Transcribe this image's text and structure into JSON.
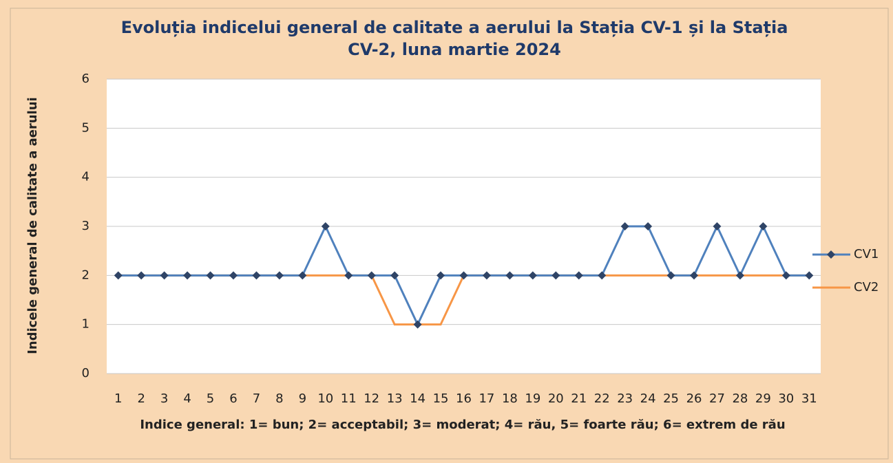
{
  "chart_data": {
    "type": "line",
    "title": "Evoluția indicelui general de calitate a aerului la Stația CV-1  și la Stația CV-2, luna martie 2024",
    "y_label": "Indicele general  de calitate a aerului",
    "x_label": "Indice general: 1= bun; 2= acceptabil; 3= moderat; 4= rău, 5= foarte rău; 6= extrem de rău",
    "categories": [
      "1",
      "2",
      "3",
      "4",
      "5",
      "6",
      "7",
      "8",
      "9",
      "10",
      "11",
      "12",
      "13",
      "14",
      "15",
      "16",
      "17",
      "18",
      "19",
      "20",
      "21",
      "22",
      "23",
      "24",
      "25",
      "26",
      "27",
      "28",
      "29",
      "30",
      "31"
    ],
    "series": [
      {
        "name": "CV1",
        "color": "#4f81bd",
        "marker_color": "#2f4466",
        "marker": true,
        "values": [
          2,
          2,
          2,
          2,
          2,
          2,
          2,
          2,
          2,
          3,
          2,
          2,
          2,
          1,
          2,
          2,
          2,
          2,
          2,
          2,
          2,
          2,
          3,
          3,
          2,
          2,
          3,
          2,
          3,
          2,
          2
        ]
      },
      {
        "name": "CV2",
        "color": "#f79646",
        "marker": false,
        "values": [
          2,
          2,
          2,
          2,
          2,
          2,
          2,
          2,
          2,
          2,
          2,
          2,
          1,
          1,
          1,
          2,
          2,
          2,
          2,
          2,
          2,
          2,
          2,
          2,
          2,
          2,
          2,
          2,
          2,
          2,
          2
        ]
      }
    ],
    "ylim": [
      0,
      6
    ],
    "yticks": [
      0,
      1,
      2,
      3,
      4,
      5,
      6
    ],
    "grid": true,
    "legend": "right"
  }
}
